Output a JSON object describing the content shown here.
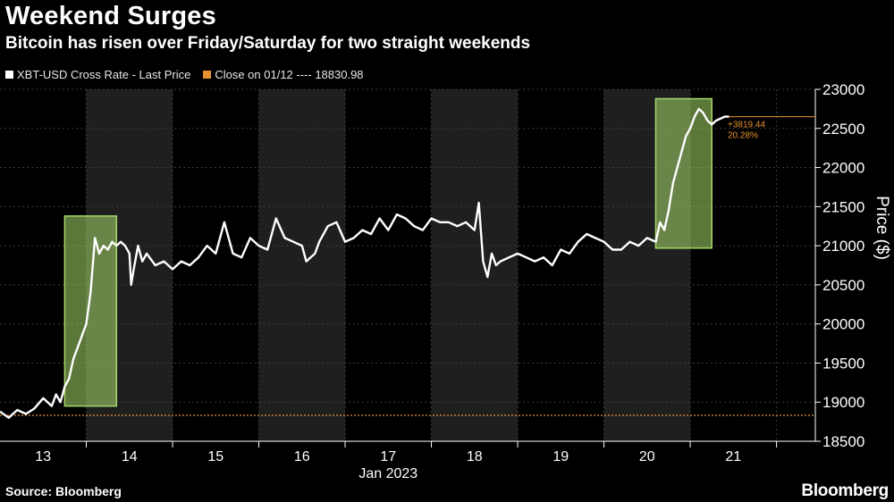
{
  "title": "Weekend Surges",
  "subtitle": "Bitcoin has risen over Friday/Saturday for two straight weekends",
  "legend": {
    "series_label": "XBT-USD Cross Rate - Last Price",
    "close_label": "Close on 01/12 ---- 18830.98"
  },
  "source": "Source: Bloomberg",
  "brand": "Bloomberg",
  "colors": {
    "price_line": "#ffffff",
    "close_line": "#e8922e",
    "highlight": "#a6d96a",
    "weekend_band": "#1f1f1f",
    "grid": "#3a3a3a"
  },
  "chart_data": {
    "type": "line",
    "title": "Weekend Surges",
    "subtitle": "Bitcoin has risen over Friday/Saturday for two straight weekends",
    "xlabel": "Jan 2023",
    "ylabel": "Price ($)",
    "x_ticks": [
      "13",
      "14",
      "15",
      "16",
      "17",
      "18",
      "19",
      "20",
      "21"
    ],
    "x_label_positions": [
      13,
      14,
      15,
      16,
      17,
      18,
      19,
      20,
      21
    ],
    "xlim": [
      12.5,
      21.95
    ],
    "ylim": [
      18500,
      23000
    ],
    "y_ticks": [
      18500,
      19000,
      19500,
      20000,
      20500,
      21000,
      21500,
      22000,
      22500,
      23000
    ],
    "grid": true,
    "weekend_bands": [
      [
        13.5,
        14.5
      ],
      [
        15.5,
        16.5
      ],
      [
        17.5,
        18.5
      ],
      [
        19.5,
        20.5
      ]
    ],
    "highlight_boxes": [
      [
        13.25,
        13.85,
        18950,
        21380
      ],
      [
        20.1,
        20.75,
        20970,
        22880
      ]
    ],
    "reference_line": {
      "name": "Close on 01/12",
      "value": 18830.98
    },
    "annotation": {
      "change": "+3819.44",
      "percent": "20.28%",
      "last_value": 22650
    },
    "series": [
      {
        "name": "XBT-USD Cross Rate - Last Price",
        "x": [
          12.5,
          12.6,
          12.7,
          12.8,
          12.9,
          13.0,
          13.1,
          13.15,
          13.2,
          13.25,
          13.3,
          13.35,
          13.4,
          13.45,
          13.5,
          13.55,
          13.6,
          13.65,
          13.7,
          13.75,
          13.8,
          13.85,
          13.9,
          13.95,
          14.0,
          14.02,
          14.05,
          14.1,
          14.15,
          14.2,
          14.3,
          14.4,
          14.5,
          14.6,
          14.7,
          14.8,
          14.9,
          15.0,
          15.1,
          15.2,
          15.3,
          15.4,
          15.5,
          15.6,
          15.7,
          15.8,
          15.9,
          16.0,
          16.05,
          16.1,
          16.15,
          16.2,
          16.3,
          16.4,
          16.5,
          16.6,
          16.7,
          16.8,
          16.9,
          17.0,
          17.1,
          17.2,
          17.3,
          17.4,
          17.5,
          17.6,
          17.7,
          17.8,
          17.9,
          18.0,
          18.05,
          18.1,
          18.15,
          18.2,
          18.25,
          18.3,
          18.4,
          18.5,
          18.6,
          18.7,
          18.8,
          18.9,
          19.0,
          19.1,
          19.2,
          19.3,
          19.4,
          19.5,
          19.6,
          19.7,
          19.8,
          19.9,
          20.0,
          20.1,
          20.15,
          20.2,
          20.25,
          20.3,
          20.35,
          20.4,
          20.45,
          20.5,
          20.55,
          20.6,
          20.65,
          20.7,
          20.75,
          20.8,
          20.9,
          20.95
        ],
        "y": [
          18880,
          18800,
          18900,
          18850,
          18920,
          19050,
          18950,
          19100,
          19000,
          19200,
          19300,
          19550,
          19700,
          19850,
          20000,
          20400,
          21100,
          20900,
          21000,
          20950,
          21050,
          21000,
          21050,
          21000,
          20900,
          20500,
          20700,
          21000,
          20800,
          20900,
          20750,
          20800,
          20700,
          20800,
          20750,
          20850,
          21000,
          20900,
          21300,
          20900,
          20850,
          21100,
          21000,
          20950,
          21350,
          21100,
          21050,
          21000,
          20800,
          20850,
          20900,
          21050,
          21250,
          21300,
          21050,
          21100,
          21200,
          21150,
          21350,
          21200,
          21400,
          21350,
          21250,
          21200,
          21350,
          21300,
          21300,
          21250,
          21300,
          21200,
          21550,
          20800,
          20600,
          20900,
          20750,
          20800,
          20850,
          20900,
          20850,
          20800,
          20850,
          20750,
          20950,
          20900,
          21050,
          21150,
          21100,
          21050,
          20950,
          20950,
          21050,
          21000,
          21100,
          21050,
          21300,
          21200,
          21450,
          21800,
          22000,
          22200,
          22400,
          22500,
          22650,
          22750,
          22700,
          22600,
          22550,
          22600,
          22650,
          22650
        ]
      }
    ]
  }
}
